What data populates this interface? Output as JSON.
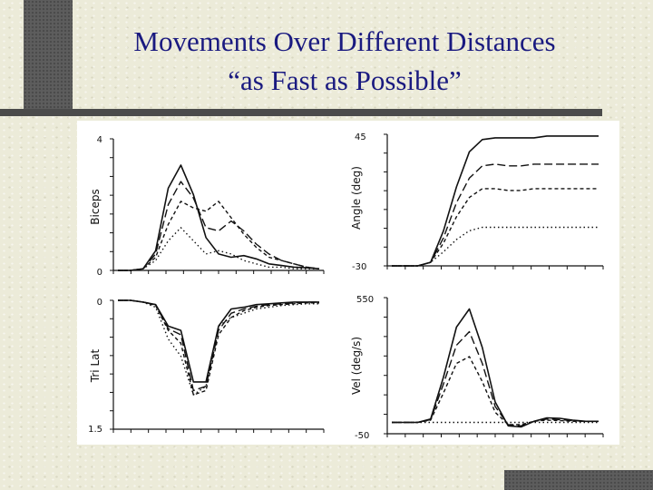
{
  "slide": {
    "title_line1": "Movements Over Different Distances",
    "title_line2": "“as Fast as Possible”"
  },
  "figure": {
    "panels": {
      "biceps": {
        "ylabel": "Biceps",
        "ytick_top": "4",
        "ytick_bottom": "0"
      },
      "angle": {
        "ylabel": "Angle (deg)",
        "ytick_top": "45",
        "ytick_bottom": "-30"
      },
      "trilat": {
        "ylabel": "Tri Lat",
        "ytick_top": "0",
        "ytick_bottom": "1.5"
      },
      "vel": {
        "ylabel": "Vel (deg/s)",
        "ytick_top": "550",
        "ytick_bottom": "-50"
      }
    }
  },
  "chart_data": [
    {
      "type": "line",
      "panel": "biceps",
      "ylabel": "Biceps",
      "ylim": [
        0,
        4
      ],
      "series": [
        {
          "style": "solid",
          "values": [
            0,
            0,
            0.05,
            0.6,
            2.5,
            3.2,
            2.3,
            1.0,
            0.5,
            0.4,
            0.45,
            0.35,
            0.2,
            0.15,
            0.1,
            0.08,
            0.05
          ]
        },
        {
          "style": "long-dash",
          "values": [
            0,
            0,
            0.05,
            0.5,
            2.0,
            2.7,
            2.2,
            1.3,
            1.2,
            1.5,
            1.2,
            0.8,
            0.5,
            0.3,
            0.2,
            0.1,
            0.05
          ]
        },
        {
          "style": "short-dash",
          "values": [
            0,
            0,
            0.05,
            0.4,
            1.4,
            2.1,
            1.9,
            1.8,
            2.1,
            1.6,
            1.1,
            0.7,
            0.4,
            0.3,
            0.2,
            0.1,
            0.05
          ]
        },
        {
          "style": "dotted",
          "values": [
            0,
            0,
            0.05,
            0.3,
            0.9,
            1.3,
            0.9,
            0.5,
            0.6,
            0.5,
            0.3,
            0.2,
            0.1,
            0.1,
            0.05,
            0.05,
            0.05
          ]
        }
      ]
    },
    {
      "type": "line",
      "panel": "angle",
      "ylabel": "Angle (deg)",
      "ylim": [
        -30,
        45
      ],
      "series": [
        {
          "style": "solid",
          "values": [
            -30,
            -30,
            -30,
            -28,
            -10,
            15,
            35,
            42,
            43,
            43,
            43,
            43,
            44,
            44,
            44,
            44,
            44
          ]
        },
        {
          "style": "long-dash",
          "values": [
            -30,
            -30,
            -30,
            -28,
            -14,
            6,
            20,
            27,
            28,
            27,
            27,
            28,
            28,
            28,
            28,
            28,
            28
          ]
        },
        {
          "style": "short-dash",
          "values": [
            -30,
            -30,
            -30,
            -28,
            -17,
            -2,
            9,
            14,
            14,
            13,
            13,
            14,
            14,
            14,
            14,
            14,
            14
          ]
        },
        {
          "style": "dotted",
          "values": [
            -30,
            -30,
            -30,
            -28,
            -22,
            -15,
            -10,
            -8,
            -8,
            -8,
            -8,
            -8,
            -8,
            -8,
            -8,
            -8,
            -8
          ]
        }
      ]
    },
    {
      "type": "line",
      "panel": "trilat",
      "ylabel": "Tri Lat",
      "ylim": [
        0,
        1.5
      ],
      "series": [
        {
          "style": "solid",
          "values": [
            0,
            0,
            0.02,
            0.05,
            0.3,
            0.35,
            0.95,
            0.95,
            0.3,
            0.1,
            0.08,
            0.05,
            0.04,
            0.03,
            0.02,
            0.02,
            0.02
          ]
        },
        {
          "style": "long-dash",
          "values": [
            0,
            0,
            0.02,
            0.05,
            0.33,
            0.4,
            1.05,
            1.0,
            0.35,
            0.15,
            0.1,
            0.07,
            0.05,
            0.04,
            0.03,
            0.02,
            0.02
          ]
        },
        {
          "style": "short-dash",
          "values": [
            0,
            0,
            0.02,
            0.06,
            0.35,
            0.5,
            1.1,
            1.05,
            0.4,
            0.2,
            0.12,
            0.08,
            0.06,
            0.05,
            0.04,
            0.03,
            0.03
          ]
        },
        {
          "style": "dotted",
          "values": [
            0,
            0,
            0.02,
            0.08,
            0.45,
            0.65,
            1.1,
            1.0,
            0.3,
            0.2,
            0.15,
            0.1,
            0.08,
            0.06,
            0.05,
            0.04,
            0.04
          ]
        }
      ]
    },
    {
      "type": "line",
      "panel": "vel",
      "ylabel": "Vel (deg/s)",
      "ylim": [
        -50,
        550
      ],
      "series": [
        {
          "style": "solid",
          "values": [
            0,
            0,
            0,
            15,
            200,
            420,
            500,
            330,
            90,
            -15,
            -20,
            5,
            20,
            18,
            10,
            5,
            5
          ]
        },
        {
          "style": "long-dash",
          "values": [
            0,
            0,
            0,
            12,
            170,
            340,
            400,
            260,
            70,
            -10,
            -15,
            5,
            15,
            12,
            8,
            5,
            5
          ]
        },
        {
          "style": "short-dash",
          "values": [
            0,
            0,
            0,
            10,
            130,
            260,
            290,
            180,
            45,
            -10,
            -10,
            5,
            10,
            8,
            5,
            5,
            5
          ]
        },
        {
          "style": "dotted",
          "values": [
            0,
            0,
            0,
            0,
            0,
            0,
            0,
            0,
            0,
            0,
            0,
            0,
            0,
            0,
            0,
            0,
            0
          ]
        }
      ]
    }
  ]
}
